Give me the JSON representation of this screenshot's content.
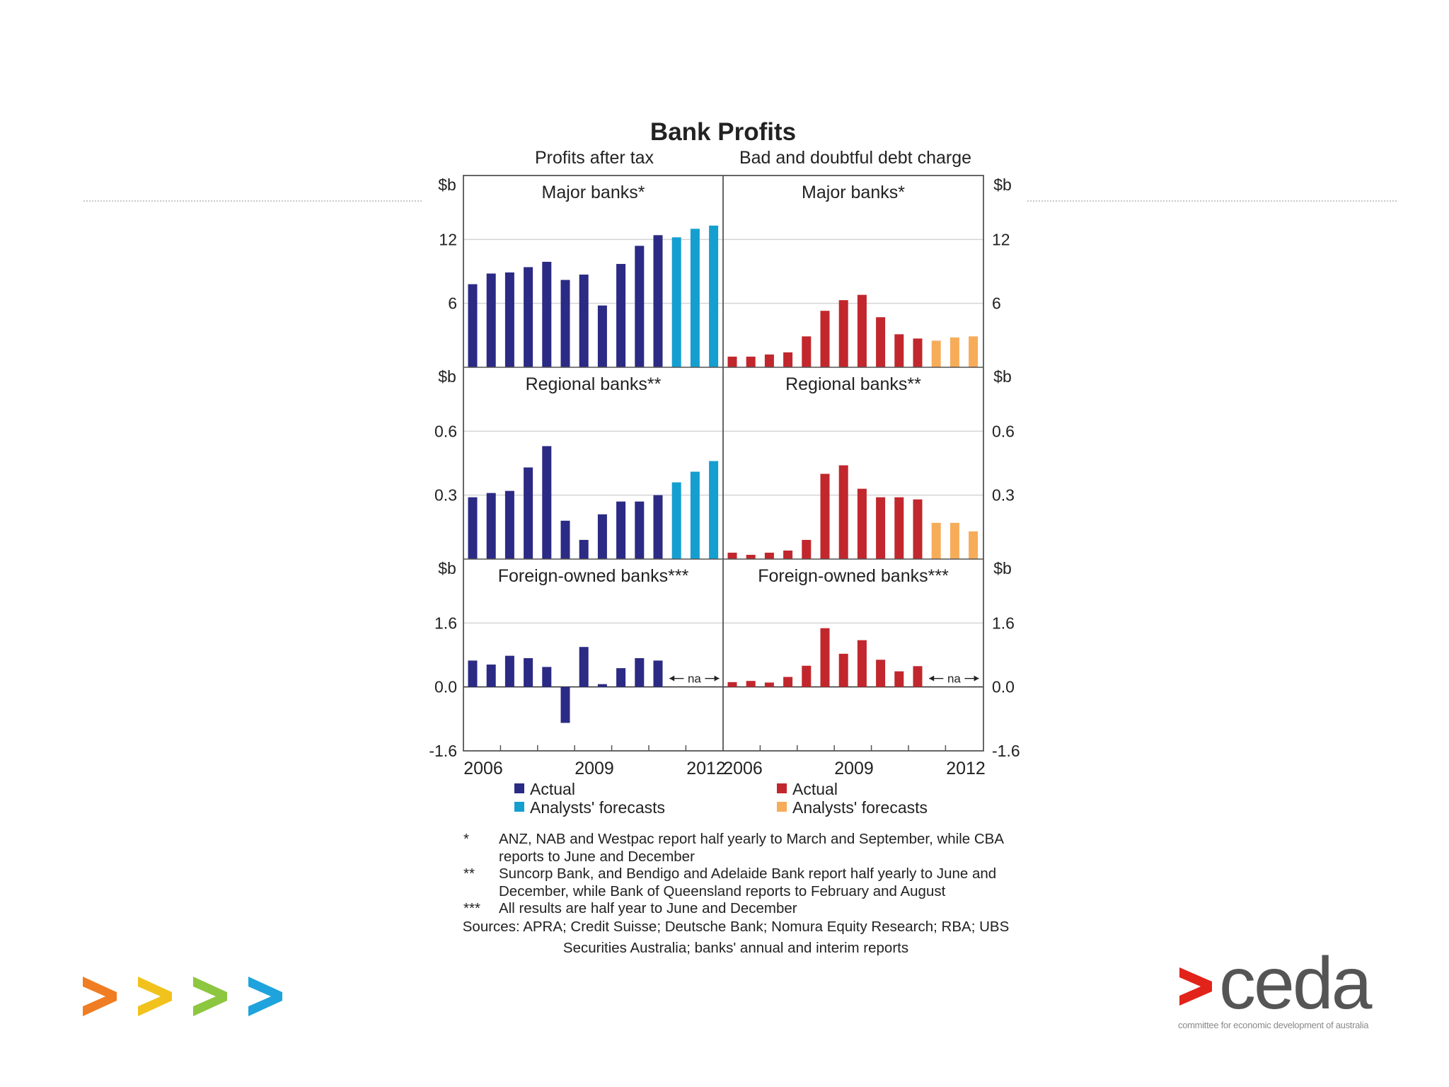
{
  "chart_data": {
    "type": "bar",
    "title": "Bank Profits",
    "column_titles": [
      "Profits after tax",
      "Bad and doubtful debt charge"
    ],
    "x_tick_labels": [
      "2006",
      "2009",
      "2012"
    ],
    "colors": {
      "actual_left": "#2b2a84",
      "forecast_left": "#159fd0",
      "actual_right": "#c1272d",
      "forecast_right": "#f7ac5a"
    },
    "panels": [
      {
        "name": "Major banks*",
        "unit": "$b",
        "ylim": [
          0,
          18
        ],
        "yticks": [
          {
            "v": 12,
            "label": "12"
          },
          {
            "v": 6,
            "label": "6"
          }
        ],
        "left": {
          "actual": [
            7.8,
            8.8,
            8.9,
            9.4,
            9.9,
            8.2,
            8.7,
            5.8,
            9.7,
            11.4,
            12.4
          ],
          "forecast": [
            12.2,
            13.0,
            13.3
          ]
        },
        "right": {
          "actual": [
            1.0,
            1.0,
            1.2,
            1.4,
            2.9,
            5.3,
            6.3,
            6.8,
            4.7,
            3.1,
            2.7
          ],
          "forecast": [
            2.5,
            2.8,
            2.9
          ]
        }
      },
      {
        "name": "Regional banks**",
        "unit": "$b",
        "ylim": [
          0,
          0.9
        ],
        "yticks": [
          {
            "v": 0.6,
            "label": "0.6"
          },
          {
            "v": 0.3,
            "label": "0.3"
          }
        ],
        "left": {
          "actual": [
            0.29,
            0.31,
            0.32,
            0.43,
            0.53,
            0.18,
            0.09,
            0.21,
            0.27,
            0.27,
            0.3
          ],
          "forecast": [
            0.36,
            0.41,
            0.46
          ]
        },
        "right": {
          "actual": [
            0.03,
            0.02,
            0.03,
            0.04,
            0.09,
            0.4,
            0.44,
            0.33,
            0.29,
            0.29,
            0.28
          ],
          "forecast": [
            0.17,
            0.17,
            0.13
          ]
        }
      },
      {
        "name": "Foreign-owned banks***",
        "unit": "$b",
        "ylim": [
          -1.6,
          3.2
        ],
        "yticks": [
          {
            "v": 1.6,
            "label": "1.6"
          },
          {
            "v": 0.0,
            "label": "0.0"
          },
          {
            "v": -1.6,
            "label": "-1.6"
          }
        ],
        "na_label": "na",
        "left": {
          "actual": [
            0.66,
            0.56,
            0.78,
            0.72,
            0.5,
            -0.9,
            1.0,
            0.07,
            0.47,
            0.72,
            0.66
          ],
          "forecast": []
        },
        "right": {
          "actual": [
            0.12,
            0.15,
            0.11,
            0.25,
            0.53,
            1.47,
            0.83,
            1.17,
            0.68,
            0.39,
            0.52
          ],
          "forecast": []
        }
      }
    ],
    "legend": {
      "left": [
        "Actual",
        "Analysts' forecasts"
      ],
      "right": [
        "Actual",
        "Analysts' forecasts"
      ]
    }
  },
  "notes": [
    {
      "mark": "*",
      "text": "ANZ, NAB and Westpac report half yearly to March and September, while CBA reports to June and December"
    },
    {
      "mark": "**",
      "text": "Suncorp Bank, and Bendigo and Adelaide Bank report half yearly to June and December, while Bank of Queensland reports to February and August"
    },
    {
      "mark": "***",
      "text": "All results are half year to June and December"
    }
  ],
  "sources": "Sources: APRA; Credit Suisse; Deutsche Bank; Nomura Equity Research; RBA; UBS Securities Australia; banks' annual and interim reports",
  "logo": {
    "text": "ceda",
    "tagline": "committee for economic development of australia"
  },
  "arrow_colors": [
    "#f07d22",
    "#f1c21b",
    "#8dc63f",
    "#1fa3dc"
  ]
}
